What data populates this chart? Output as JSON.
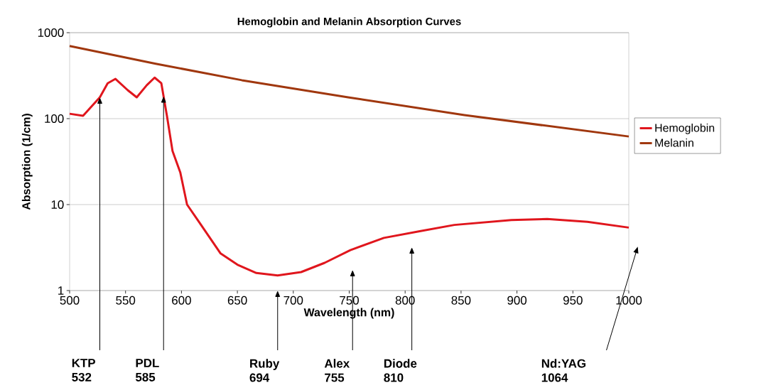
{
  "chart_data": {
    "type": "line",
    "title": "Hemoglobin and Melanin Absorption Curves",
    "xlabel": "Wavelength (nm)",
    "ylabel": "Absorption (1/cm)",
    "log": "y",
    "grid": "y",
    "legend": "right",
    "line_style": "solid",
    "marker": "none",
    "xlim": [
      500,
      1000
    ],
    "xticks": [
      500,
      550,
      600,
      650,
      700,
      750,
      800,
      850,
      900,
      950,
      1000
    ],
    "ylim": [
      1,
      1000
    ],
    "yticks": [
      1,
      10,
      100,
      1000
    ],
    "series": [
      {
        "name": "Hemoglobin",
        "color": "#e0161d",
        "x": [
          500,
          512,
          527,
          534,
          541,
          552,
          560,
          569,
          576,
          582,
          587,
          592,
          599,
          605,
          616,
          635,
          650,
          667,
          686,
          707,
          728,
          751,
          781,
          813,
          844,
          895,
          927,
          963,
          1000
        ],
        "values": [
          114,
          108,
          177,
          258,
          290,
          214,
          177,
          245,
          300,
          258,
          108,
          42,
          23.5,
          10,
          6.2,
          2.7,
          2.0,
          1.6,
          1.5,
          1.64,
          2.1,
          2.95,
          4.1,
          4.9,
          5.8,
          6.6,
          6.8,
          6.3,
          5.4
        ]
      },
      {
        "name": "Melanin",
        "color": "#a0370e",
        "x": [
          500,
          577,
          654,
          749,
          853,
          1000
        ],
        "values": [
          700,
          435,
          280,
          177,
          110,
          62
        ]
      }
    ],
    "annotations": [
      {
        "text": "KTP 532",
        "x": 527,
        "y": 177
      },
      {
        "text": "PDL 585",
        "x": 584,
        "y": 182
      },
      "Ruby 694",
      "Alex 755",
      "Diode 810",
      "Nd:YAG 1064"
    ]
  }
}
